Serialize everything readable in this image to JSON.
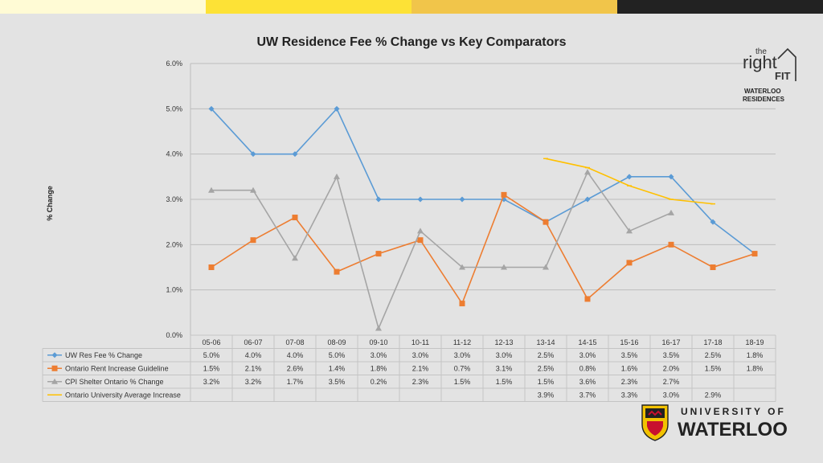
{
  "colors": {
    "series": [
      "#5b9bd5",
      "#ed7d31",
      "#a5a5a5",
      "#ffc000"
    ],
    "top_bar": [
      "#fffbd5",
      "#fde236",
      "#f1c54a",
      "#222222"
    ]
  },
  "chart_data": {
    "type": "line",
    "title": "UW Residence Fee % Change vs Key Comparators",
    "ylabel": "% Change",
    "xlabel": "",
    "ylim": [
      0,
      6
    ],
    "y_ticks": [
      "0.0%",
      "1.0%",
      "2.0%",
      "3.0%",
      "4.0%",
      "5.0%",
      "6.0%"
    ],
    "categories": [
      "05-06",
      "06-07",
      "07-08",
      "08-09",
      "09-10",
      "10-11",
      "11-12",
      "12-13",
      "13-14",
      "14-15",
      "15-16",
      "16-17",
      "17-18",
      "18-19"
    ],
    "series": [
      {
        "name": "UW Res Fee % Change",
        "marker": "diamond",
        "values": [
          5.0,
          4.0,
          4.0,
          5.0,
          3.0,
          3.0,
          3.0,
          3.0,
          2.5,
          3.0,
          3.5,
          3.5,
          2.5,
          1.8
        ],
        "labels": [
          "5.0%",
          "4.0%",
          "4.0%",
          "5.0%",
          "3.0%",
          "3.0%",
          "3.0%",
          "3.0%",
          "2.5%",
          "3.0%",
          "3.5%",
          "3.5%",
          "2.5%",
          "1.8%"
        ]
      },
      {
        "name": "Ontario Rent Increase Guideline",
        "marker": "square",
        "values": [
          1.5,
          2.1,
          2.6,
          1.4,
          1.8,
          2.1,
          0.7,
          3.1,
          2.5,
          0.8,
          1.6,
          2.0,
          1.5,
          1.8
        ],
        "labels": [
          "1.5%",
          "2.1%",
          "2.6%",
          "1.4%",
          "1.8%",
          "2.1%",
          "0.7%",
          "3.1%",
          "2.5%",
          "0.8%",
          "1.6%",
          "2.0%",
          "1.5%",
          "1.8%"
        ]
      },
      {
        "name": "CPI Shelter Ontario % Change",
        "marker": "triangle",
        "values": [
          3.2,
          3.2,
          1.7,
          3.5,
          0.15,
          2.3,
          1.5,
          1.5,
          1.5,
          3.6,
          2.3,
          2.7,
          null,
          null
        ],
        "labels": [
          "3.2%",
          "3.2%",
          "1.7%",
          "3.5%",
          "0.2%",
          "2.3%",
          "1.5%",
          "1.5%",
          "1.5%",
          "3.6%",
          "2.3%",
          "2.7%",
          "",
          ""
        ]
      },
      {
        "name": "Ontario University Average Increase",
        "marker": "dash",
        "values": [
          null,
          null,
          null,
          null,
          null,
          null,
          null,
          null,
          3.9,
          3.7,
          3.3,
          3.0,
          2.9,
          null
        ],
        "labels": [
          "",
          "",
          "",
          "",
          "",
          "",
          "",
          "",
          "3.9%",
          "3.7%",
          "3.3%",
          "3.0%",
          "2.9%",
          ""
        ]
      }
    ]
  },
  "logo_fit": {
    "line1": "the",
    "line2": "right",
    "line3": "FIT",
    "line4": "WATERLOO",
    "line5": "RESIDENCES"
  },
  "logo_uw": {
    "line1": "UNIVERSITY OF",
    "line2": "WATERLOO"
  }
}
